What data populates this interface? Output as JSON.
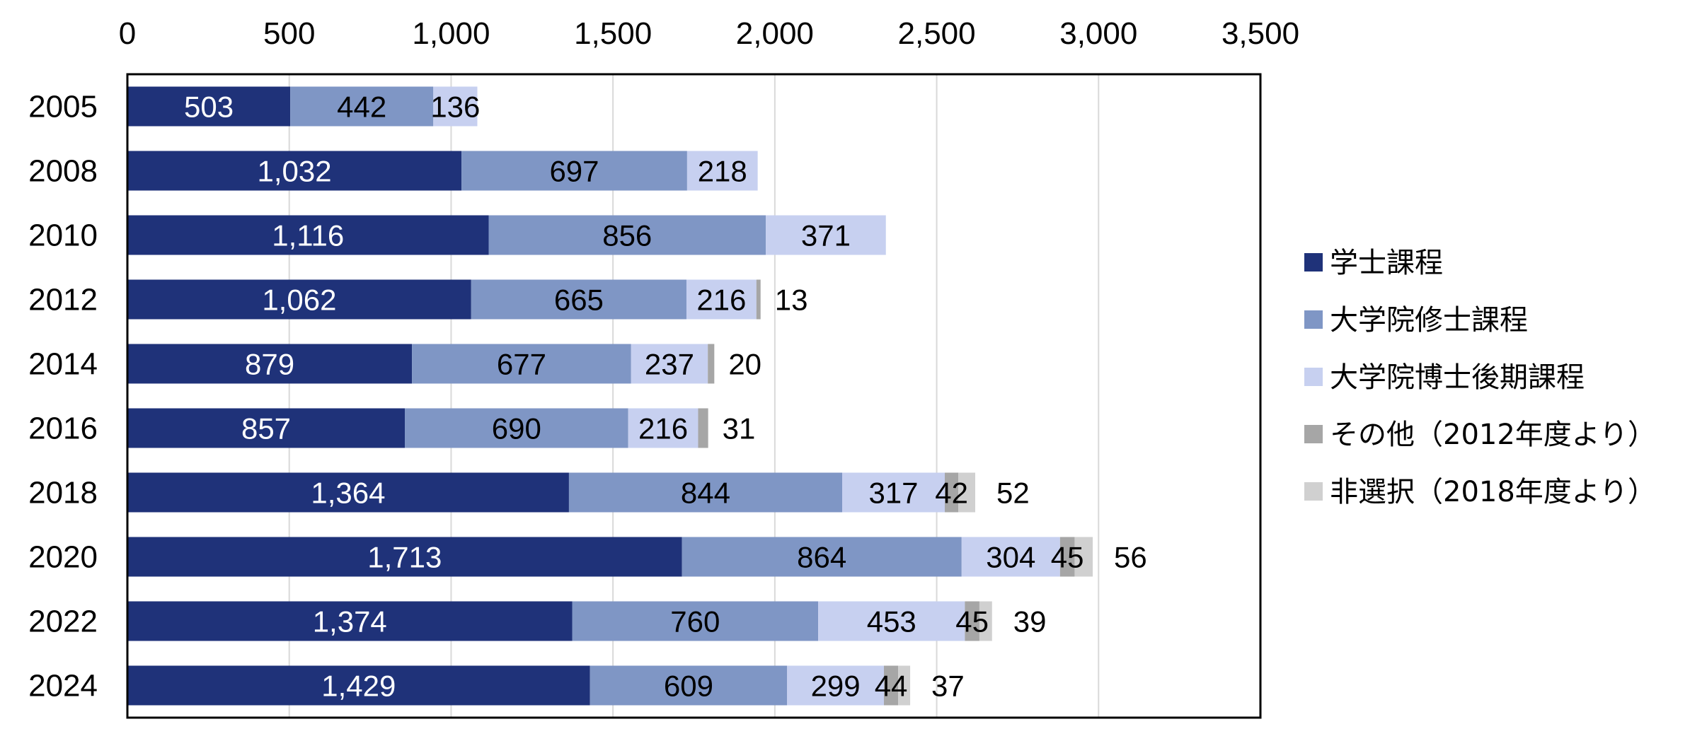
{
  "chart_data": {
    "type": "bar",
    "orientation": "horizontal",
    "stacked": true,
    "categories": [
      "2005",
      "2008",
      "2010",
      "2012",
      "2014",
      "2016",
      "2018",
      "2020",
      "2022",
      "2024"
    ],
    "series": [
      {
        "name": "学士課程",
        "color": "#1F3279",
        "label_color": "#ffffff",
        "values": [
          503,
          1032,
          1116,
          1062,
          879,
          857,
          1364,
          1713,
          1374,
          1429
        ]
      },
      {
        "name": "大学院修士課程",
        "color": "#7F96C5",
        "label_color": "#000000",
        "values": [
          442,
          697,
          856,
          665,
          677,
          690,
          844,
          864,
          760,
          609
        ]
      },
      {
        "name": "大学院博士後期課程",
        "color": "#C7D0F0",
        "label_color": "#000000",
        "values": [
          136,
          218,
          371,
          216,
          237,
          216,
          317,
          304,
          453,
          299
        ]
      },
      {
        "name": "その他（2012年度より）",
        "color": "#A6A6A6",
        "label_color": "#000000",
        "values": [
          null,
          null,
          null,
          13,
          20,
          31,
          42,
          45,
          45,
          44
        ]
      },
      {
        "name": "非選択（2018年度より）",
        "color": "#D0D0D0",
        "label_color": "#000000",
        "values": [
          null,
          null,
          null,
          null,
          null,
          null,
          52,
          56,
          39,
          37
        ]
      }
    ],
    "xlim": [
      0,
      3500
    ],
    "x_ticks": [
      "0",
      "500",
      "1,000",
      "1,500",
      "2,000",
      "2,500",
      "3,000",
      "3,500"
    ],
    "x_tick_values": [
      0,
      500,
      1000,
      1500,
      2000,
      2500,
      3000,
      3500
    ],
    "x_axis_position": "top",
    "grid": "vertical",
    "legend_position": "right",
    "title": "",
    "xlabel": "",
    "ylabel": ""
  }
}
